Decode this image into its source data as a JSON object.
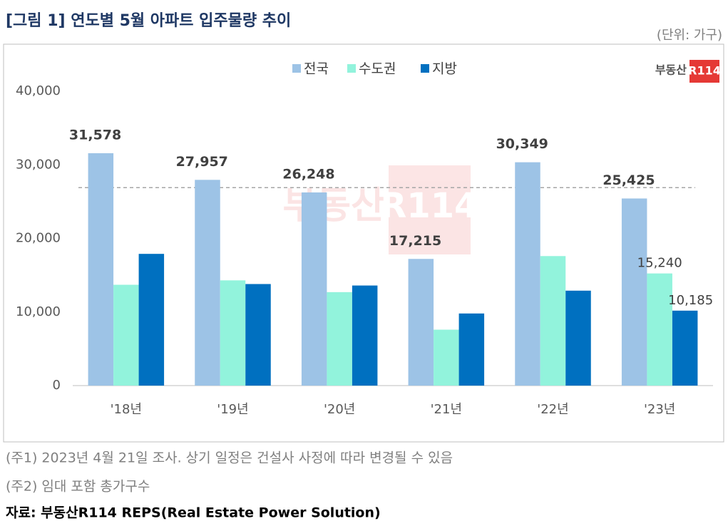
{
  "chart_data": {
    "type": "bar",
    "title": "[그림 1] 연도별 5월 아파트 입주물량 추이",
    "unit": "(단위: 가구)",
    "logo": "부동산",
    "logo_mark": "R114",
    "categories": [
      "'18년",
      "'19년",
      "'20년",
      "'21년",
      "'22년",
      "'23년"
    ],
    "series": [
      {
        "name": "전국",
        "color": "#9dc3e6",
        "values": [
          31578,
          27957,
          26248,
          17215,
          30349,
          25425
        ],
        "value_labels": [
          "31,578",
          "27,957",
          "26,248",
          "17,215",
          "30,349",
          "25,425"
        ]
      },
      {
        "name": "수도권",
        "color": "#92f3dc",
        "values": [
          13700,
          14300,
          12700,
          7600,
          17600,
          15240
        ],
        "value_labels": [
          null,
          null,
          null,
          null,
          null,
          "15,240"
        ]
      },
      {
        "name": "지방",
        "color": "#0070c0",
        "values": [
          17900,
          13800,
          13600,
          9800,
          12900,
          10185
        ],
        "value_labels": [
          null,
          null,
          null,
          null,
          null,
          "10,185"
        ]
      }
    ],
    "reference_value": 26900,
    "ylim": [
      0,
      40000
    ],
    "yticks": [
      0,
      {
        "value": 10000,
        "label": "10,000"
      },
      {
        "value": 20000,
        "label": "20,000"
      },
      {
        "value": 30000,
        "label": "30,000"
      },
      {
        "value": 40000,
        "label": "40,000"
      }
    ],
    "legend": "top",
    "notes": [
      "(주1) 2023년 4월 21일 조사. 상기 일정은 건설사 사정에 따라 변경될 수 있음",
      "(주2) 임대 포함 총가구수"
    ],
    "source": "자료: 부동산R114 REPS(Real Estate Power Solution)"
  }
}
